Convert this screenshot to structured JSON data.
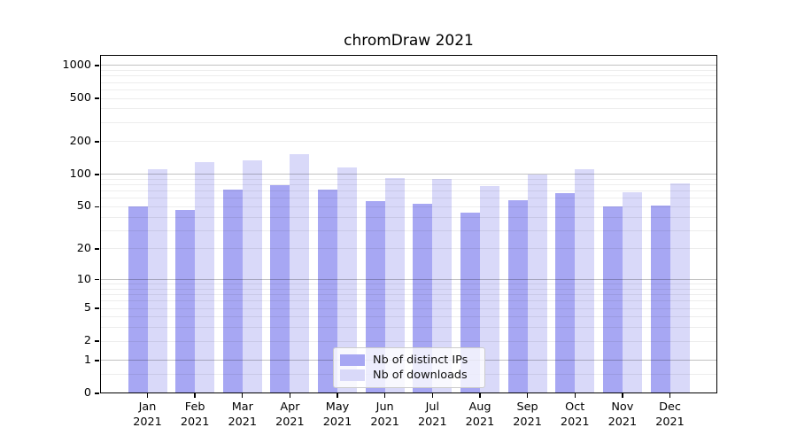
{
  "chart_data": {
    "type": "bar",
    "title": "chromDraw 2021",
    "x_labels": [
      [
        "Jan",
        "2021"
      ],
      [
        "Feb",
        "2021"
      ],
      [
        "Mar",
        "2021"
      ],
      [
        "Apr",
        "2021"
      ],
      [
        "May",
        "2021"
      ],
      [
        "Jun",
        "2021"
      ],
      [
        "Jul",
        "2021"
      ],
      [
        "Aug",
        "2021"
      ],
      [
        "Sep",
        "2021"
      ],
      [
        "Oct",
        "2021"
      ],
      [
        "Nov",
        "2021"
      ],
      [
        "Dec",
        "2021"
      ]
    ],
    "series": [
      {
        "name": "Nb of distinct IPs",
        "color": "#a7a7f3",
        "values": [
          50,
          47,
          72,
          79,
          73,
          57,
          53,
          44,
          58,
          67,
          50,
          51
        ]
      },
      {
        "name": "Nb of downloads",
        "color": "#d9d9f9",
        "values": [
          112,
          131,
          135,
          154,
          117,
          92,
          91,
          78,
          100,
          111,
          68,
          82
        ]
      }
    ],
    "y_scale": "log10(1+y)",
    "ylim": [
      0,
      1250
    ],
    "y_ticks": [
      0,
      1,
      2,
      5,
      10,
      20,
      50,
      100,
      200,
      500,
      1000
    ],
    "major_gridlines": [
      1,
      10,
      100,
      1000
    ],
    "minor_gridlines": [
      0.5,
      2,
      3,
      4,
      5,
      6,
      7,
      8,
      9,
      20,
      30,
      40,
      50,
      60,
      70,
      80,
      90,
      200,
      300,
      400,
      500,
      600,
      700,
      800,
      900
    ],
    "grid": "on",
    "legend": {
      "position": "lower center"
    }
  }
}
